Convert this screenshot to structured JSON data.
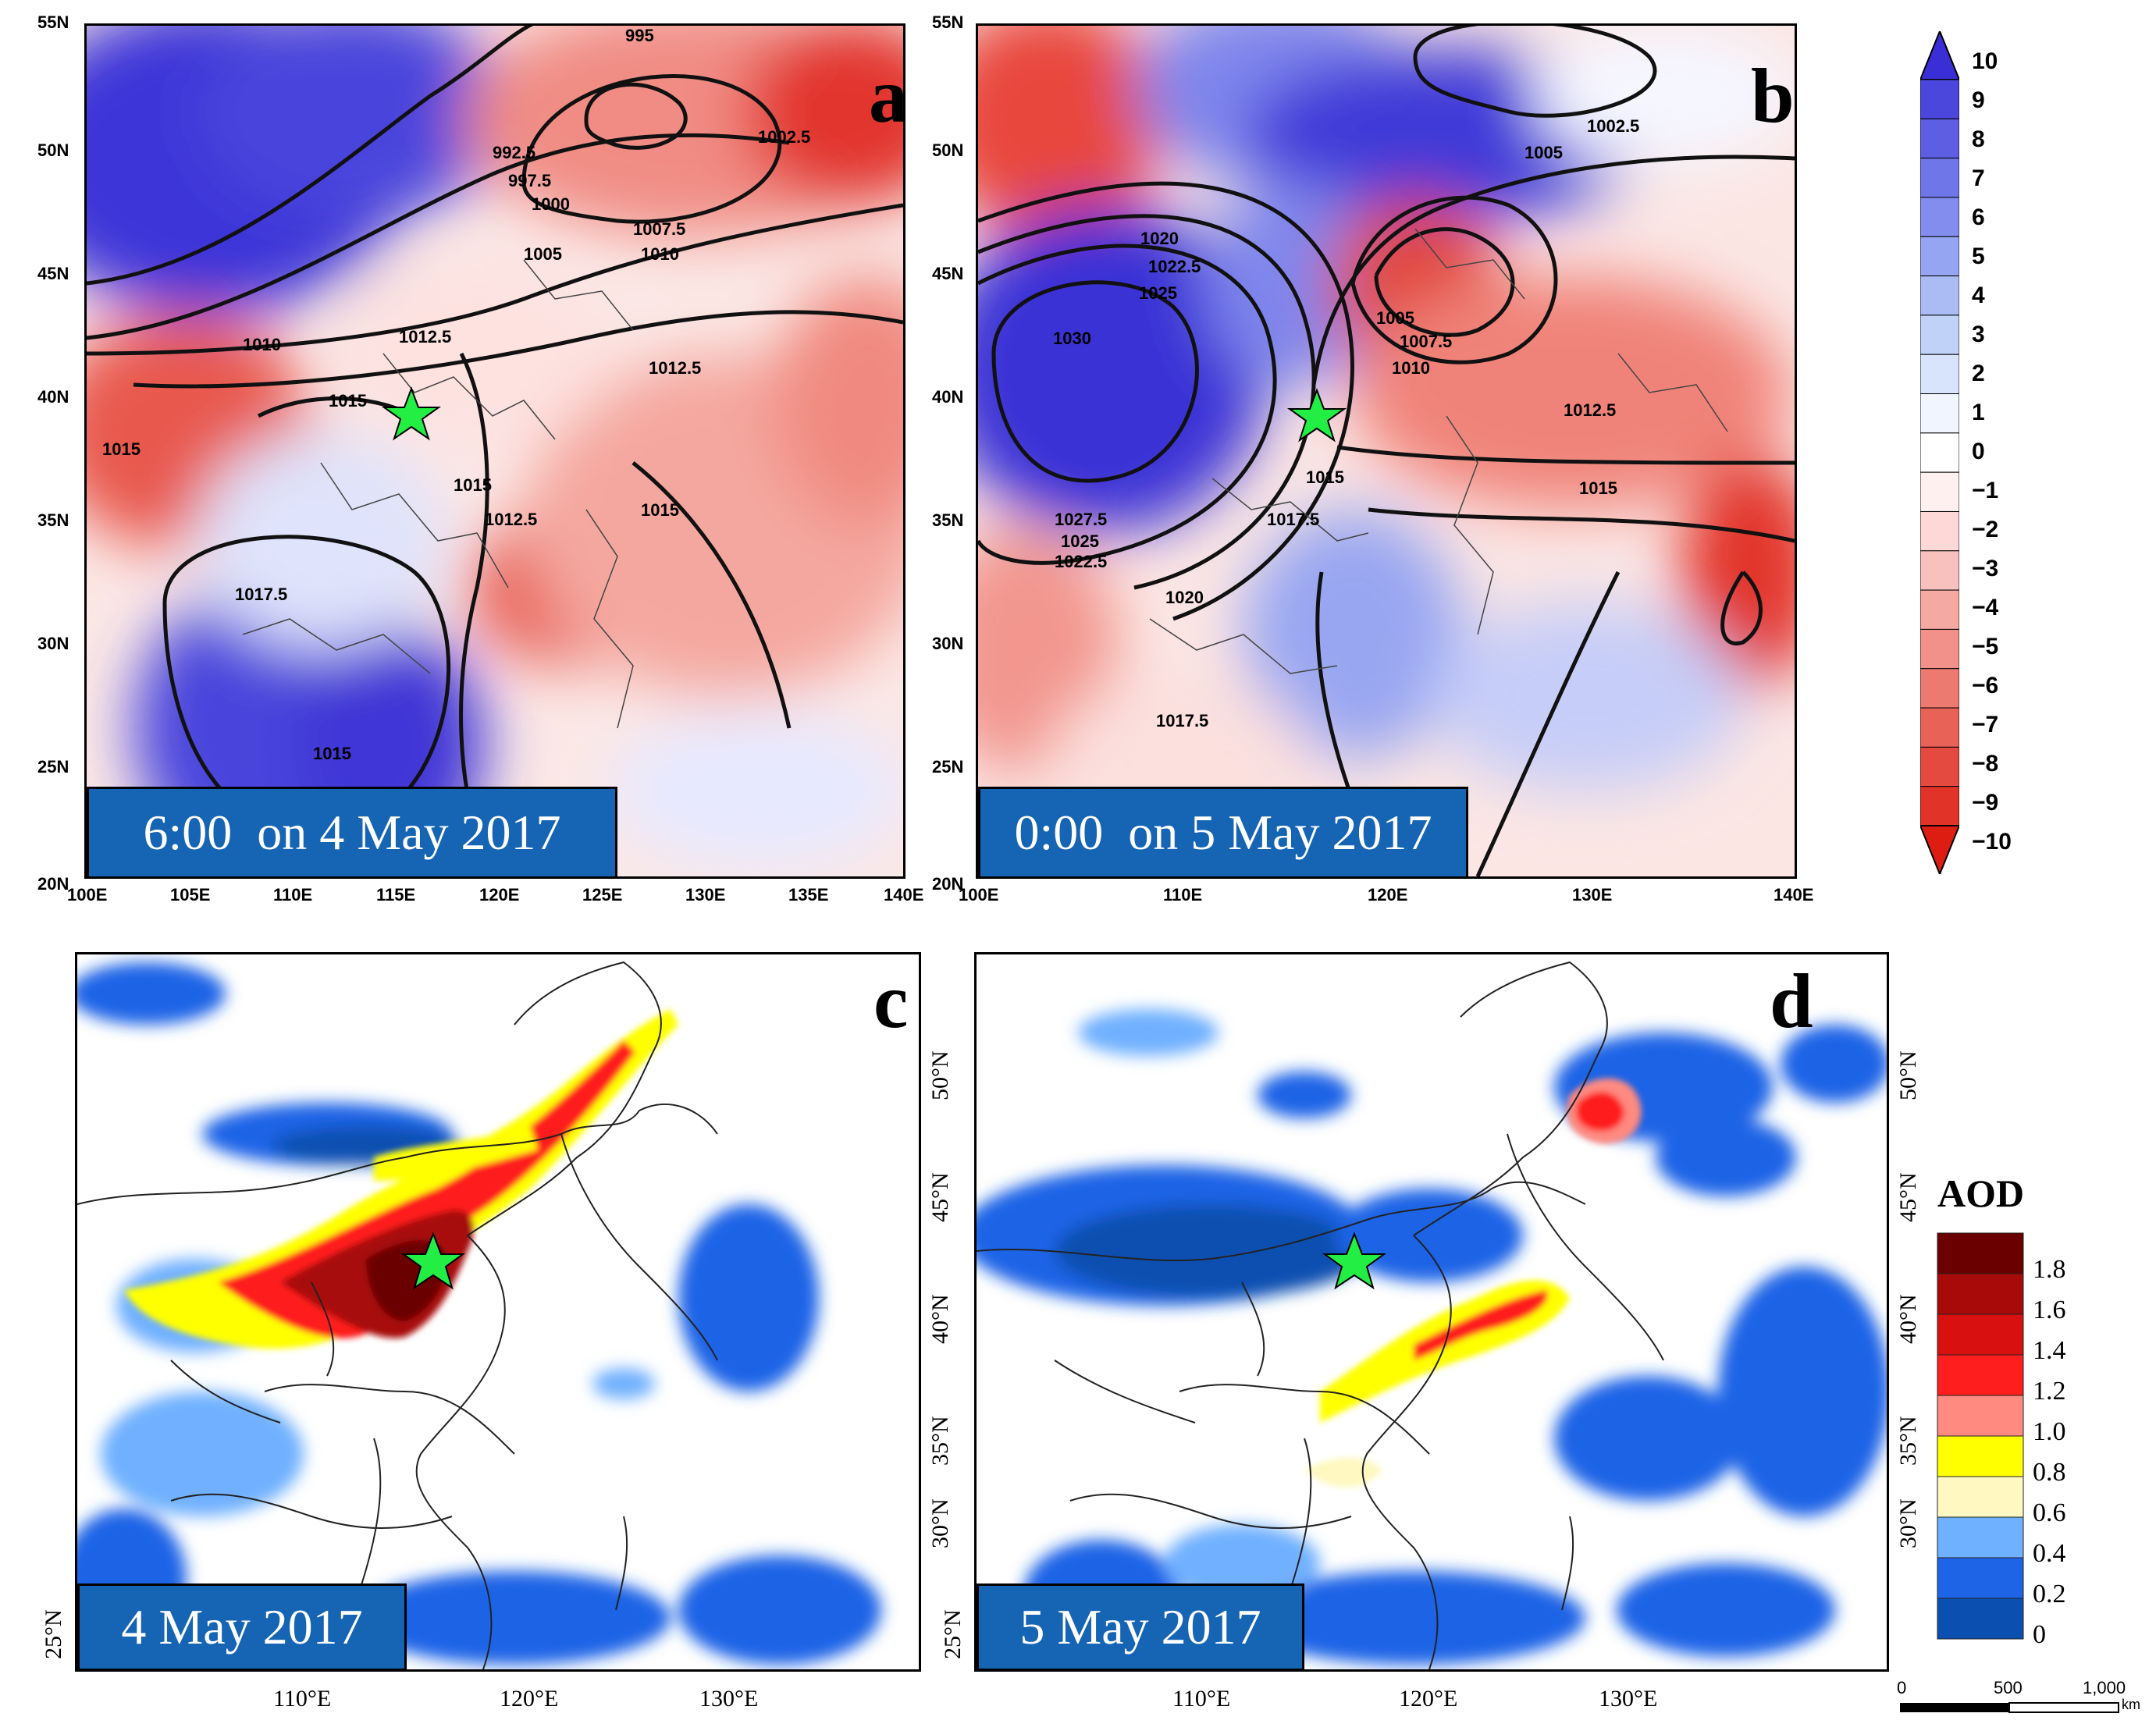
{
  "panels": {
    "a": {
      "letter": "a",
      "date": "6:00  on 4 May 2017",
      "lat_ticks": [
        "55N",
        "50N",
        "45N",
        "40N",
        "35N",
        "30N",
        "25N",
        "20N"
      ],
      "lon_ticks": [
        "100E",
        "105E",
        "110E",
        "115E",
        "120E",
        "125E",
        "130E",
        "135E",
        "140E"
      ],
      "isobar_labels": [
        "995",
        "992.5",
        "997.5",
        "1000",
        "1002.5",
        "1005",
        "1007.5",
        "1010",
        "1010",
        "1012.5",
        "1012.5",
        "1015",
        "1015",
        "1015",
        "1015",
        "1012.5",
        "1017.5",
        "1015"
      ]
    },
    "b": {
      "letter": "b",
      "date": "0:00  on 5 May 2017",
      "lat_ticks": [
        "55N",
        "50N",
        "45N",
        "40N",
        "35N",
        "30N",
        "25N",
        "20N"
      ],
      "lon_ticks": [
        "100E",
        "110E",
        "120E",
        "130E",
        "140E"
      ],
      "isobar_labels": [
        "1002.5",
        "1005",
        "1020",
        "1022.5",
        "1025",
        "1030",
        "1005",
        "1007.5",
        "1010",
        "1012.5",
        "1015",
        "1015",
        "1027.5",
        "1025",
        "1022.5",
        "1017.5",
        "1020",
        "1017.5"
      ]
    },
    "c": {
      "letter": "c",
      "date": "4 May 2017",
      "lat_ticks": [
        "50°N",
        "45°N",
        "40°N",
        "35°N",
        "30°N",
        "25°N"
      ],
      "lon_ticks": [
        "110°E",
        "120°E",
        "130°E"
      ]
    },
    "d": {
      "letter": "d",
      "date": "5 May 2017",
      "lat_ticks": [
        "50°N",
        "45°N",
        "40°N",
        "35°N",
        "30°N",
        "25°N"
      ],
      "lon_ticks": [
        "110°E",
        "120°E",
        "130°E"
      ]
    }
  },
  "colorbar_temp": {
    "labels": [
      "10",
      "9",
      "8",
      "7",
      "6",
      "5",
      "4",
      "3",
      "2",
      "1",
      "0",
      "−1",
      "−2",
      "−3",
      "−4",
      "−5",
      "−6",
      "−7",
      "−8",
      "−9",
      "−10"
    ],
    "colors": [
      "#3a2fd6",
      "#4b46dc",
      "#5d5ee2",
      "#6f76e8",
      "#828ded",
      "#96a5f1",
      "#abbcf5",
      "#c1d2f9",
      "#d8e4fc",
      "#f0f5ff",
      "#ffffff",
      "#fff0f0",
      "#fdd8d6",
      "#f9c1bd",
      "#f5a9a3",
      "#f1918a",
      "#ed7a70",
      "#e96258",
      "#e54a40",
      "#e13328",
      "#dd1d12"
    ]
  },
  "colorbar_aod": {
    "title": "AOD",
    "labels": [
      "1.8",
      "1.6",
      "1.4",
      "1.2",
      "1.0",
      "0.8",
      "0.6",
      "0.4",
      "0.2",
      "0"
    ],
    "colors": [
      "#6b0000",
      "#a80a0a",
      "#d81010",
      "#ff1e1e",
      "#ff8a80",
      "#ffff00",
      "#fff8c0",
      "#6fb0ff",
      "#1e64e6",
      "#0b4fb0"
    ]
  },
  "scale_bar": {
    "labels": [
      "0",
      "500",
      "1,000"
    ],
    "unit": "km"
  },
  "markers": {
    "star_color": "#22ee44"
  }
}
